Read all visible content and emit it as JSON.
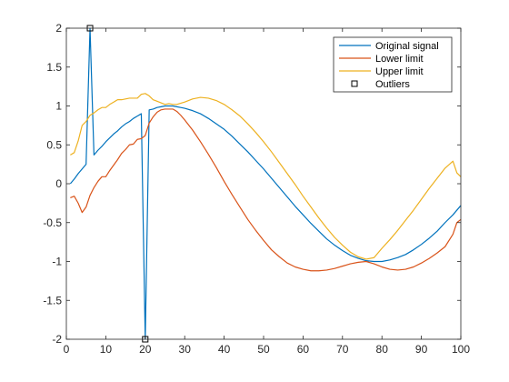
{
  "chart_data": {
    "type": "line",
    "title": "",
    "xlabel": "",
    "ylabel": "",
    "xlim": [
      0,
      100
    ],
    "ylim": [
      -2,
      2
    ],
    "xticks": [
      0,
      10,
      20,
      30,
      40,
      50,
      60,
      70,
      80,
      90,
      100
    ],
    "yticks": [
      -2,
      -1.5,
      -1,
      -0.5,
      0,
      0.5,
      1,
      1.5,
      2
    ],
    "ytick_labels": [
      "-2",
      "-1.5",
      "-1",
      "-0.5",
      "0",
      "0.5",
      "1",
      "1.5",
      "2"
    ],
    "grid": false,
    "legend_position": "top-right",
    "series": [
      {
        "name": "Original signal",
        "color": "#0072BD",
        "x": [
          1,
          2,
          3,
          4,
          5,
          6,
          7,
          8,
          9,
          10,
          11,
          12,
          13,
          14,
          15,
          16,
          17,
          18,
          19,
          20,
          21,
          22,
          23,
          24,
          25,
          26,
          27,
          28,
          29,
          30,
          32,
          34,
          36,
          38,
          40,
          42,
          44,
          46,
          48,
          50,
          52,
          54,
          56,
          58,
          60,
          62,
          64,
          66,
          68,
          70,
          72,
          74,
          76,
          78,
          80,
          82,
          84,
          86,
          88,
          90,
          92,
          94,
          96,
          98,
          100
        ],
        "y": [
          0.0,
          0.06,
          0.13,
          0.19,
          0.25,
          2.0,
          0.37,
          0.43,
          0.48,
          0.54,
          0.59,
          0.64,
          0.68,
          0.73,
          0.77,
          0.8,
          0.84,
          0.87,
          0.9,
          -2.0,
          0.95,
          0.96,
          0.98,
          0.99,
          1.0,
          1.0,
          1.0,
          0.99,
          0.98,
          0.97,
          0.94,
          0.9,
          0.84,
          0.77,
          0.7,
          0.61,
          0.51,
          0.41,
          0.3,
          0.19,
          0.07,
          -0.05,
          -0.17,
          -0.29,
          -0.4,
          -0.51,
          -0.61,
          -0.71,
          -0.79,
          -0.86,
          -0.92,
          -0.96,
          -0.99,
          -1.0,
          -1.0,
          -0.98,
          -0.95,
          -0.91,
          -0.85,
          -0.78,
          -0.7,
          -0.61,
          -0.5,
          -0.4,
          -0.28
        ]
      },
      {
        "name": "Lower limit",
        "color": "#D95319",
        "x": [
          1,
          2,
          3,
          4,
          5,
          6,
          7,
          8,
          9,
          10,
          11,
          12,
          13,
          14,
          15,
          16,
          17,
          18,
          19,
          20,
          21,
          22,
          23,
          24,
          25,
          26,
          27,
          28,
          29,
          30,
          32,
          34,
          36,
          38,
          40,
          42,
          44,
          46,
          48,
          50,
          52,
          54,
          56,
          58,
          60,
          62,
          64,
          66,
          68,
          70,
          72,
          74,
          76,
          78,
          80,
          82,
          84,
          86,
          88,
          90,
          92,
          94,
          96,
          98,
          99,
          100
        ],
        "y": [
          -0.18,
          -0.16,
          -0.25,
          -0.37,
          -0.3,
          -0.15,
          -0.05,
          0.03,
          0.09,
          0.09,
          0.17,
          0.24,
          0.31,
          0.39,
          0.44,
          0.5,
          0.51,
          0.57,
          0.58,
          0.62,
          0.78,
          0.86,
          0.92,
          0.95,
          0.96,
          0.96,
          0.96,
          0.93,
          0.88,
          0.82,
          0.69,
          0.54,
          0.38,
          0.21,
          0.03,
          -0.14,
          -0.3,
          -0.46,
          -0.6,
          -0.73,
          -0.85,
          -0.94,
          -1.02,
          -1.07,
          -1.1,
          -1.12,
          -1.12,
          -1.11,
          -1.09,
          -1.06,
          -1.03,
          -1.01,
          -1.0,
          -1.03,
          -1.07,
          -1.1,
          -1.11,
          -1.1,
          -1.07,
          -1.02,
          -0.96,
          -0.89,
          -0.81,
          -0.65,
          -0.5,
          -0.46
        ]
      },
      {
        "name": "Upper limit",
        "color": "#EDB120",
        "x": [
          1,
          2,
          3,
          4,
          5,
          6,
          7,
          8,
          9,
          10,
          11,
          12,
          13,
          14,
          15,
          16,
          17,
          18,
          19,
          20,
          21,
          22,
          23,
          24,
          25,
          26,
          27,
          28,
          30,
          32,
          34,
          36,
          38,
          40,
          42,
          44,
          46,
          48,
          50,
          52,
          54,
          56,
          58,
          60,
          62,
          64,
          66,
          68,
          70,
          72,
          74,
          76,
          78,
          80,
          82,
          84,
          86,
          88,
          90,
          92,
          94,
          96,
          98,
          99,
          100
        ],
        "y": [
          0.37,
          0.4,
          0.55,
          0.75,
          0.8,
          0.88,
          0.91,
          0.95,
          0.98,
          0.98,
          1.02,
          1.05,
          1.08,
          1.08,
          1.09,
          1.1,
          1.1,
          1.1,
          1.15,
          1.16,
          1.13,
          1.08,
          1.06,
          1.04,
          1.02,
          1.03,
          1.02,
          1.02,
          1.05,
          1.09,
          1.11,
          1.1,
          1.07,
          1.02,
          0.95,
          0.87,
          0.77,
          0.66,
          0.54,
          0.41,
          0.27,
          0.13,
          -0.01,
          -0.16,
          -0.3,
          -0.44,
          -0.57,
          -0.69,
          -0.79,
          -0.88,
          -0.94,
          -0.97,
          -0.95,
          -0.83,
          -0.72,
          -0.6,
          -0.47,
          -0.34,
          -0.2,
          -0.06,
          0.07,
          0.2,
          0.29,
          0.14,
          0.09
        ]
      }
    ],
    "outliers": {
      "name": "Outliers",
      "color": "#000000",
      "marker": "square",
      "x": [
        6,
        20
      ],
      "y": [
        2,
        -2
      ]
    }
  }
}
